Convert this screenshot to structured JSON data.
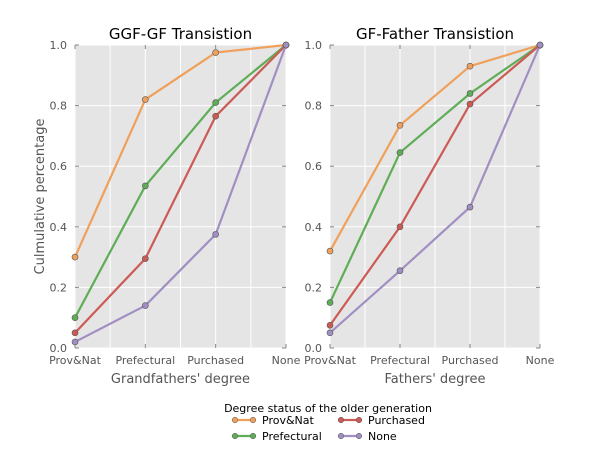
{
  "chart_data": [
    {
      "type": "line",
      "title": "GGF-GF Transistion",
      "xlabel": "Grandfathers' degree",
      "ylabel": "Culmulative percentage",
      "categories": [
        "Prov&Nat",
        "Prefectural",
        "Purchased",
        "None"
      ],
      "ylim": [
        0.0,
        1.0
      ],
      "yticks": [
        "0.0",
        "0.2",
        "0.4",
        "0.6",
        "0.8",
        "1.0"
      ],
      "grid": true,
      "series": [
        {
          "name": "Prov&Nat",
          "values": [
            0.3,
            0.82,
            0.975,
            1.0
          ]
        },
        {
          "name": "Prefectural",
          "values": [
            0.1,
            0.535,
            0.81,
            1.0
          ]
        },
        {
          "name": "Purchased",
          "values": [
            0.05,
            0.295,
            0.765,
            1.0
          ]
        },
        {
          "name": "None",
          "values": [
            0.02,
            0.14,
            0.375,
            1.0
          ]
        }
      ]
    },
    {
      "type": "line",
      "title": "GF-Father Transistion",
      "xlabel": "Fathers' degree",
      "ylabel": "",
      "categories": [
        "Prov&Nat",
        "Prefectural",
        "Purchased",
        "None"
      ],
      "ylim": [
        0.0,
        1.0
      ],
      "yticks": [
        "0.0",
        "0.2",
        "0.4",
        "0.6",
        "0.8",
        "1.0"
      ],
      "grid": true,
      "series": [
        {
          "name": "Prov&Nat",
          "values": [
            0.32,
            0.735,
            0.93,
            1.0
          ]
        },
        {
          "name": "Prefectural",
          "values": [
            0.15,
            0.645,
            0.84,
            1.0
          ]
        },
        {
          "name": "Purchased",
          "values": [
            0.075,
            0.4,
            0.805,
            1.0
          ]
        },
        {
          "name": "None",
          "values": [
            0.05,
            0.255,
            0.465,
            1.0
          ]
        }
      ]
    }
  ],
  "legend": {
    "title": "Degree status of the older generation",
    "placement": "bottom-center",
    "entries": [
      "Prov&Nat",
      "Purchased",
      "Prefectural",
      "None"
    ]
  },
  "colors": {
    "Prov&Nat": "#f0a05a",
    "Prefectural": "#5fad56",
    "Purchased": "#cc5b55",
    "None": "#a18fc3",
    "plot_background": "#e5e5e5",
    "grid": "#ffffff",
    "text": "#555555",
    "title": "#000000"
  }
}
